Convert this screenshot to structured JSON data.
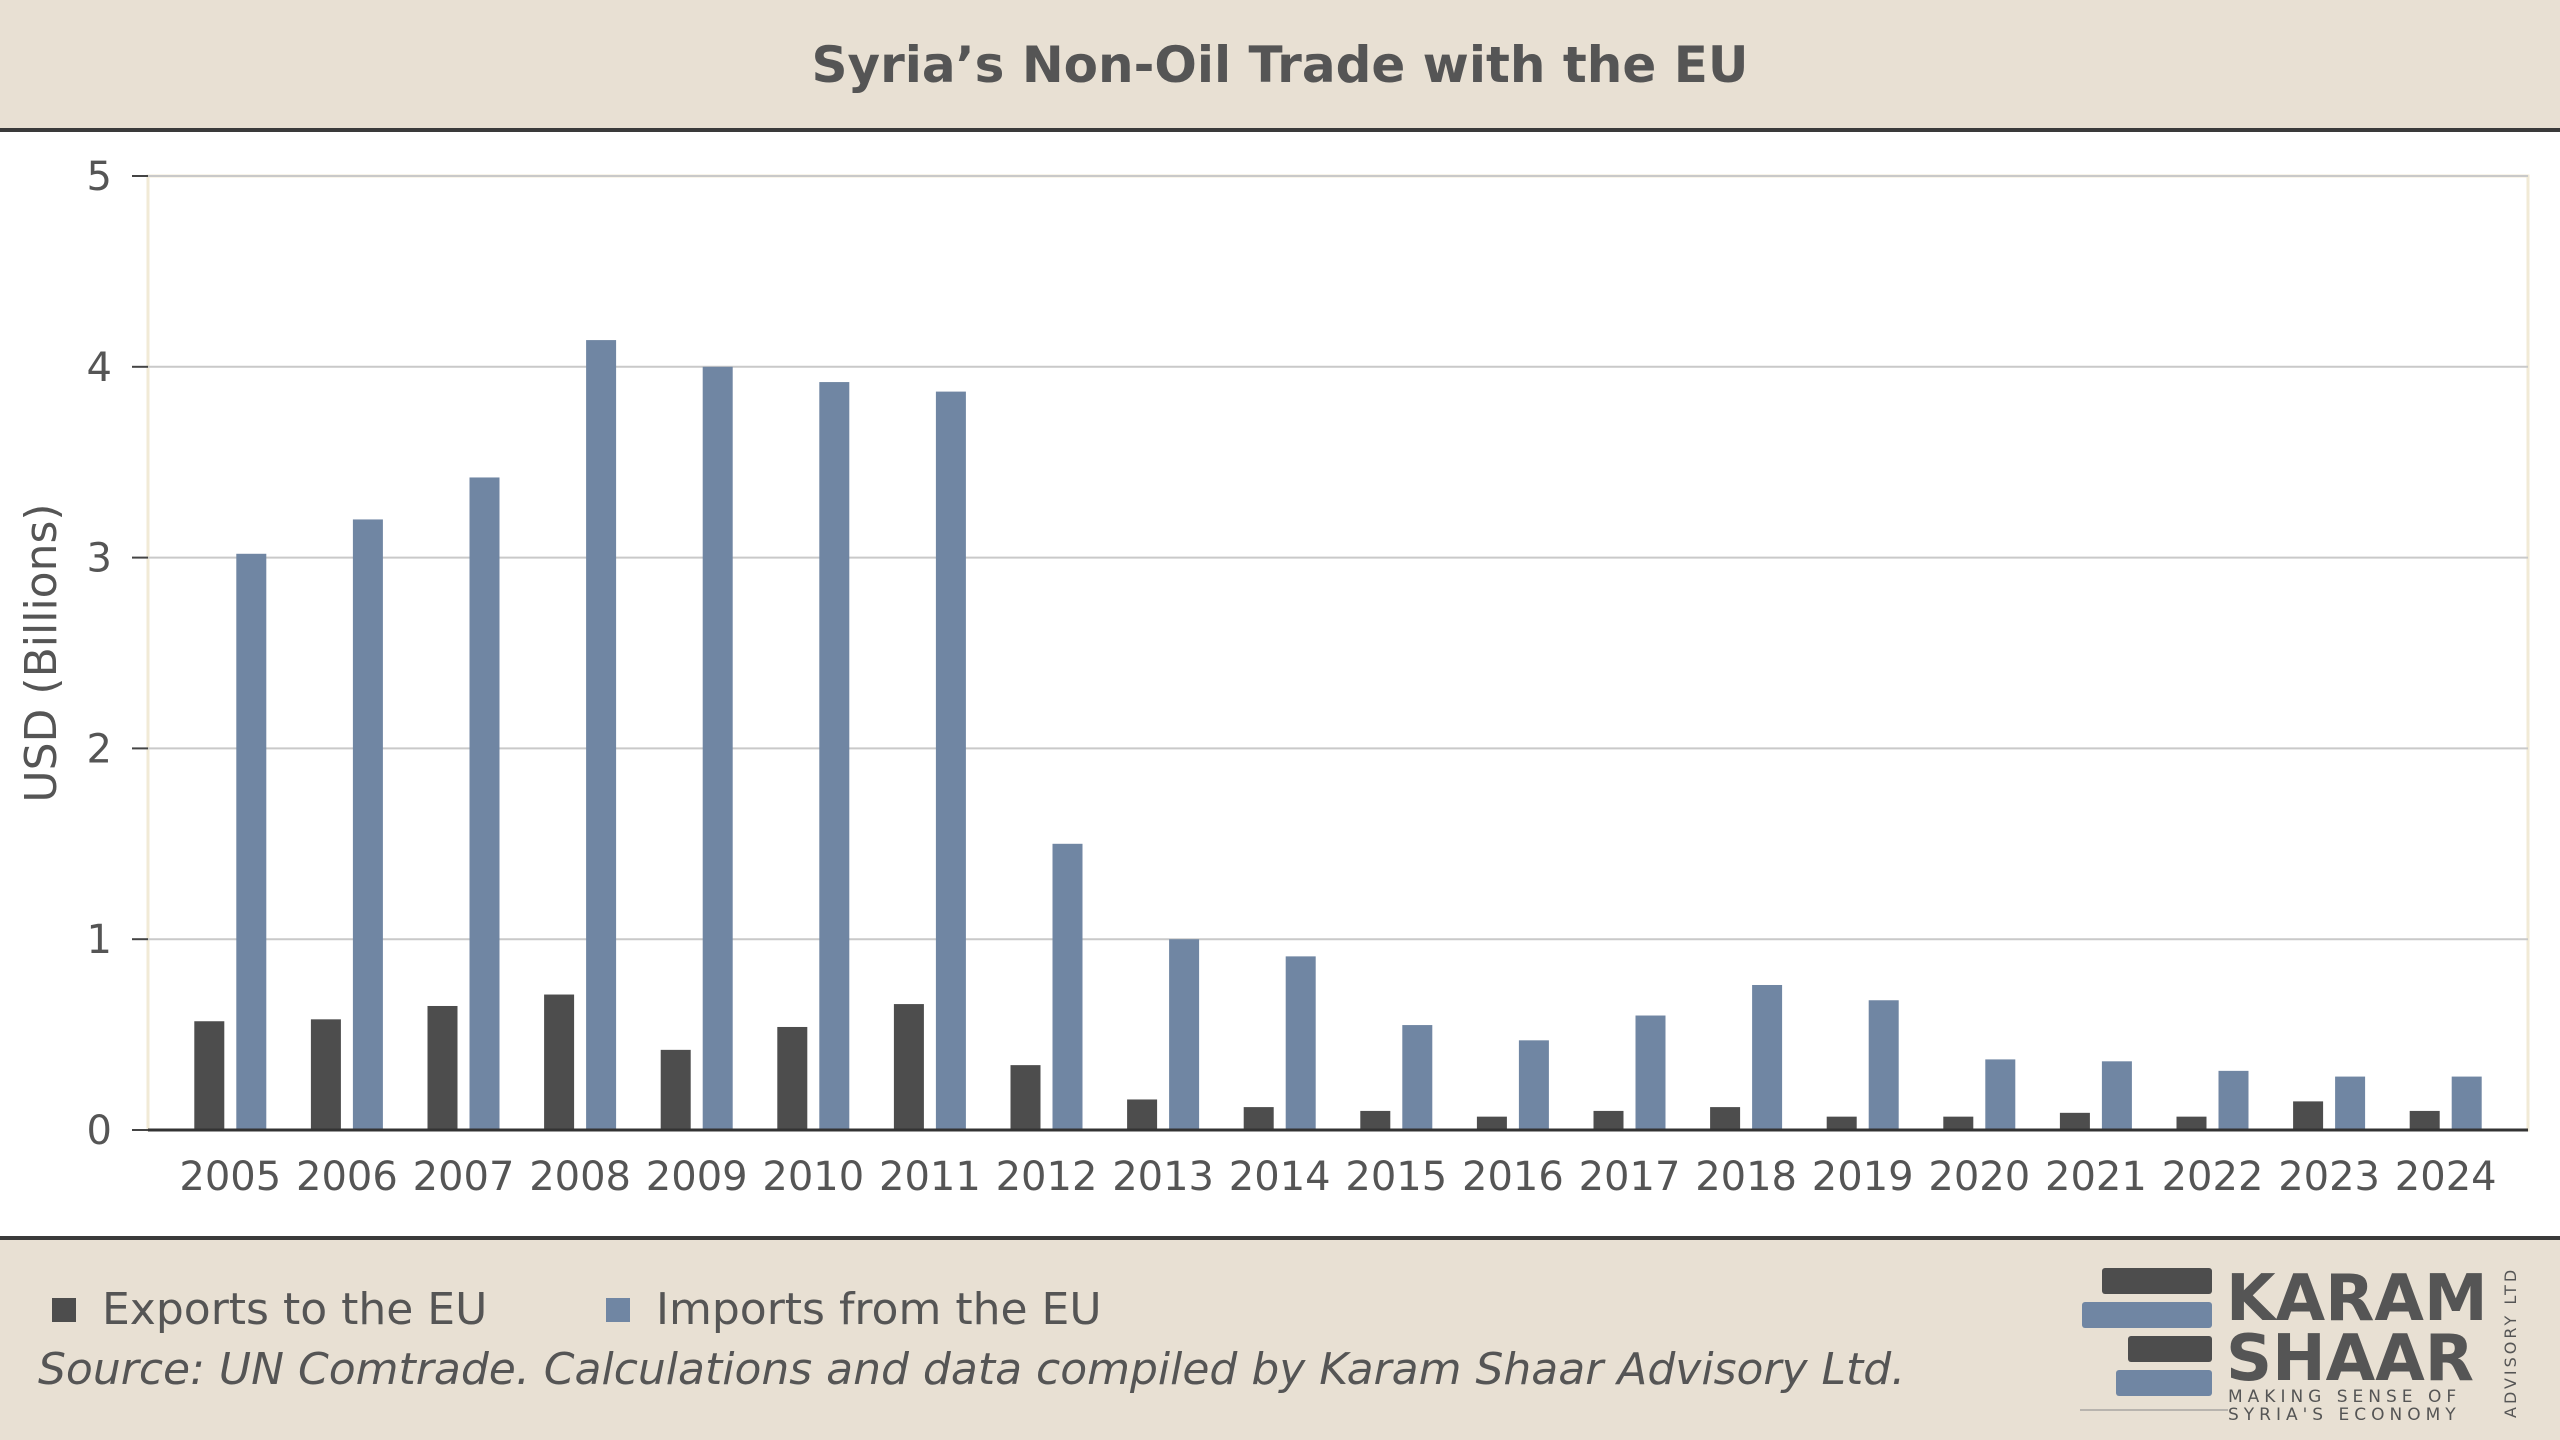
{
  "header": {
    "title": "Syria’s Non-Oil Trade with the EU"
  },
  "colors": {
    "exports": "#4d4d4d",
    "imports": "#7086a3",
    "background": "#e8e0d3",
    "text": "#555555"
  },
  "chart_data": {
    "type": "bar",
    "title": "Syria’s Non-Oil Trade with the EU",
    "xlabel": "",
    "ylabel": "USD (Billions)",
    "ylim": [
      0,
      5
    ],
    "yticks": [
      "0",
      "1",
      "2",
      "3",
      "4",
      "5"
    ],
    "grid": true,
    "legend_position": "bottom-left",
    "categories": [
      "2005",
      "2006",
      "2007",
      "2008",
      "2009",
      "2010",
      "2011",
      "2012",
      "2013",
      "2014",
      "2015",
      "2016",
      "2017",
      "2018",
      "2019",
      "2020",
      "2021",
      "2022",
      "2023",
      "2024"
    ],
    "series": [
      {
        "name": "Exports to the EU",
        "values": [
          0.57,
          0.58,
          0.65,
          0.71,
          0.42,
          0.54,
          0.66,
          0.34,
          0.16,
          0.12,
          0.1,
          0.07,
          0.1,
          0.12,
          0.07,
          0.07,
          0.09,
          0.07,
          0.15,
          0.1
        ]
      },
      {
        "name": "Imports from the EU",
        "values": [
          3.02,
          3.2,
          3.42,
          4.14,
          4.0,
          3.92,
          3.87,
          1.5,
          1.0,
          0.91,
          0.55,
          0.47,
          0.6,
          0.76,
          0.68,
          0.37,
          0.36,
          0.31,
          0.28,
          0.28
        ]
      }
    ]
  },
  "legend": {
    "exports_label": "Exports to the EU",
    "imports_label": "Imports from the EU"
  },
  "footer": {
    "source": "Source: UN Comtrade. Calculations and data compiled by Karam Shaar Advisory Ltd."
  },
  "logo": {
    "line1": "KARAM",
    "line2": "SHAAR",
    "tagline1": "MAKING SENSE OF",
    "tagline2": "SYRIA'S ECONOMY",
    "side": "ADVISORY LTD."
  }
}
